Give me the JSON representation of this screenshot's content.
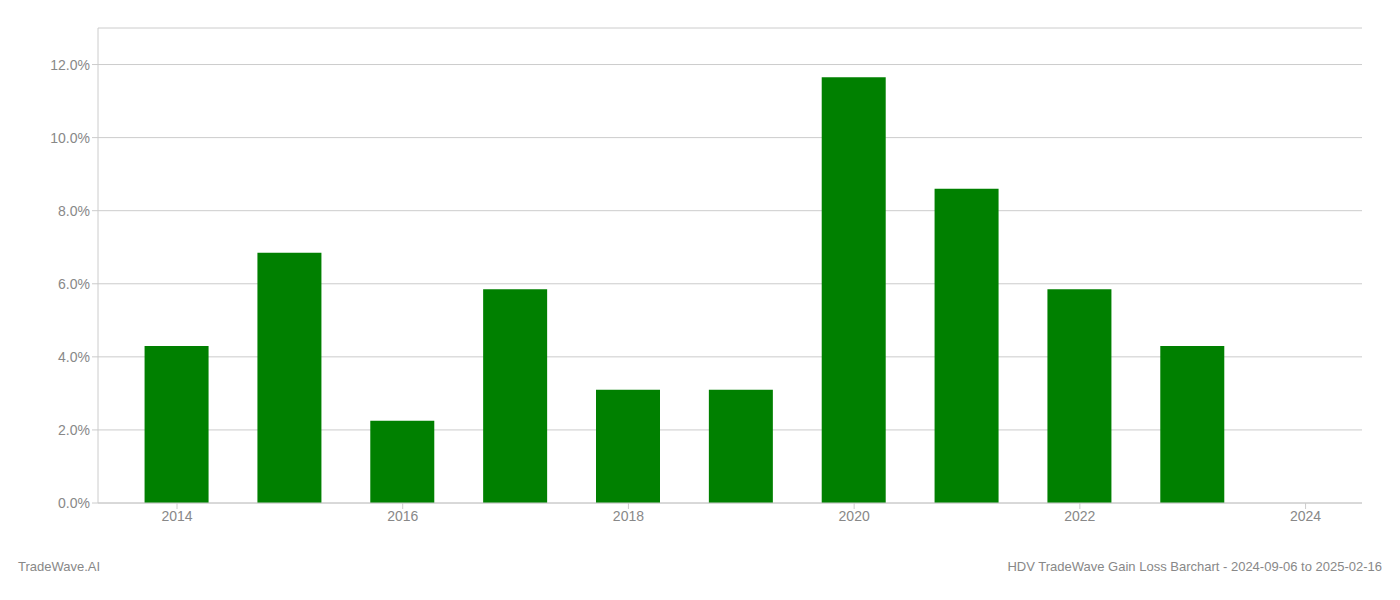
{
  "chart_data": {
    "type": "bar",
    "x": [
      2014,
      2015,
      2016,
      2017,
      2018,
      2019,
      2020,
      2021,
      2022,
      2023
    ],
    "values": [
      0.043,
      0.0685,
      0.0225,
      0.0585,
      0.031,
      0.031,
      0.1165,
      0.086,
      0.0585,
      0.043
    ],
    "color": "#008000",
    "xlim": [
      2013.3,
      2024.5
    ],
    "xticks": [
      2014,
      2016,
      2018,
      2020,
      2022,
      2024
    ],
    "ylim": [
      0,
      0.13
    ],
    "yticks": [
      {
        "value": 0.0,
        "label": "0.0%"
      },
      {
        "value": 0.02,
        "label": "2.0%"
      },
      {
        "value": 0.04,
        "label": "4.0%"
      },
      {
        "value": 0.06,
        "label": "6.0%"
      },
      {
        "value": 0.08,
        "label": "8.0%"
      },
      {
        "value": 0.1,
        "label": "10.0%"
      },
      {
        "value": 0.12,
        "label": "12.0%"
      }
    ],
    "grid": true,
    "annotations": [
      "TradeWave.AI",
      "HDV TradeWave Gain Loss Barchart - 2024-09-06 to 2025-02-16"
    ]
  }
}
